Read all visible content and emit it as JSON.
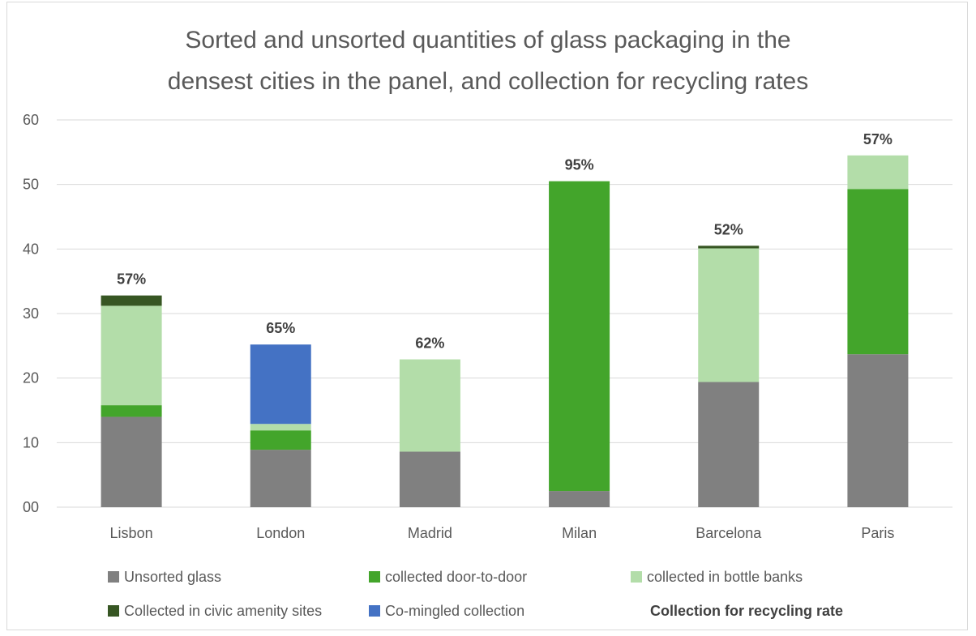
{
  "chart_data": {
    "type": "bar",
    "stacked": true,
    "title_lines": [
      "Sorted and unsorted quantities of glass packaging in the",
      "densest cities in the panel, and collection for recycling rates"
    ],
    "categories": [
      "Lisbon",
      "London",
      "Madrid",
      "Milan",
      "Barcelona",
      "Paris"
    ],
    "ylim": [
      0,
      60
    ],
    "yticks": [
      0,
      10,
      20,
      30,
      40,
      50,
      60
    ],
    "ytick_labels": [
      "00",
      "10",
      "20",
      "30",
      "40",
      "50",
      "60"
    ],
    "grid": true,
    "legend_position": "bottom",
    "series": [
      {
        "name": "Unsorted glass",
        "color": "#808080",
        "values": [
          14.0,
          8.9,
          8.6,
          2.5,
          19.4,
          23.7
        ]
      },
      {
        "name": "collected door-to-door",
        "color": "#43a52b",
        "values": [
          1.8,
          3.0,
          0,
          48.0,
          0,
          25.6
        ]
      },
      {
        "name": "collected in bottle banks",
        "color": "#b3dda9",
        "values": [
          15.4,
          1.0,
          14.3,
          0,
          20.7,
          5.2
        ]
      },
      {
        "name": "Collected in civic amenity sites",
        "color": "#375623",
        "values": [
          1.6,
          0,
          0,
          0,
          0.4,
          0
        ]
      },
      {
        "name": "Co-mingled collection",
        "color": "#4472c4",
        "values": [
          0,
          12.3,
          0,
          0,
          0,
          0
        ]
      }
    ],
    "rate_series_name": "Collection for recycling rate",
    "rate_labels": [
      "57%",
      "65%",
      "62%",
      "95%",
      "52%",
      "57%"
    ]
  }
}
